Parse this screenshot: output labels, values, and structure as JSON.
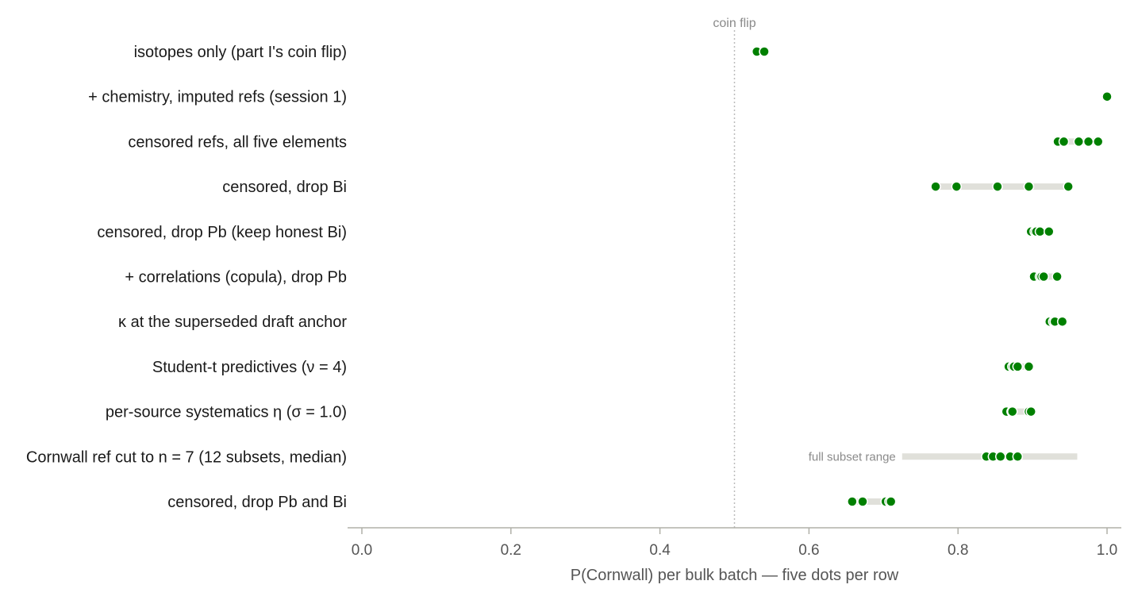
{
  "chart_data": {
    "type": "scatter",
    "xlabel": "P(Cornwall) per bulk batch — five dots per row",
    "xlim": [
      -0.02,
      1.02
    ],
    "xticks": [
      0.0,
      0.2,
      0.4,
      0.6,
      0.8,
      1.0
    ],
    "xtick_labels": [
      "0.0",
      "0.2",
      "0.4",
      "0.6",
      "0.8",
      "1.0"
    ],
    "grid": false,
    "reference_line": {
      "x": 0.5,
      "label": "coin flip"
    },
    "colors": {
      "dot": "#008000",
      "range_bar": "#e0e0da",
      "axis": "#b0b0a8",
      "reference": "#bbbbbb"
    },
    "rows": [
      {
        "label": "isotopes only (part I's coin flip)",
        "values": [
          0.53,
          0.53,
          0.53,
          0.54,
          0.54
        ]
      },
      {
        "label": "+ chemistry, imputed refs (session 1)",
        "values": [
          1.0,
          1.0,
          1.0,
          1.0,
          1.0
        ]
      },
      {
        "label": "censored refs, all five elements",
        "values": [
          0.934,
          0.942,
          0.962,
          0.975,
          0.988
        ]
      },
      {
        "label": "censored, drop Bi",
        "values": [
          0.77,
          0.798,
          0.853,
          0.895,
          0.948
        ]
      },
      {
        "label": "censored, drop Pb (keep honest Bi)",
        "values": [
          0.898,
          0.903,
          0.905,
          0.91,
          0.922
        ]
      },
      {
        "label": "+ correlations (copula), drop Pb",
        "values": [
          0.902,
          0.91,
          0.912,
          0.915,
          0.933
        ]
      },
      {
        "label": "κ at the superseded draft anchor",
        "values": [
          0.923,
          0.928,
          0.928,
          0.93,
          0.94
        ]
      },
      {
        "label": "Student-t predictives (ν = 4)",
        "values": [
          0.868,
          0.873,
          0.875,
          0.88,
          0.895
        ]
      },
      {
        "label": "per-source systematics η (σ = 1.0)",
        "values": [
          0.865,
          0.872,
          0.873,
          0.895,
          0.898
        ]
      },
      {
        "label": "Cornwall ref cut to n = 7 (12 subsets, median)",
        "values": [
          0.838,
          0.847,
          0.857,
          0.87,
          0.88
        ],
        "range": [
          0.725,
          0.96
        ],
        "range_label": "full subset range"
      },
      {
        "label": "censored, drop Pb and Bi",
        "values": [
          0.658,
          0.672,
          0.703,
          0.708,
          0.71
        ]
      }
    ]
  }
}
